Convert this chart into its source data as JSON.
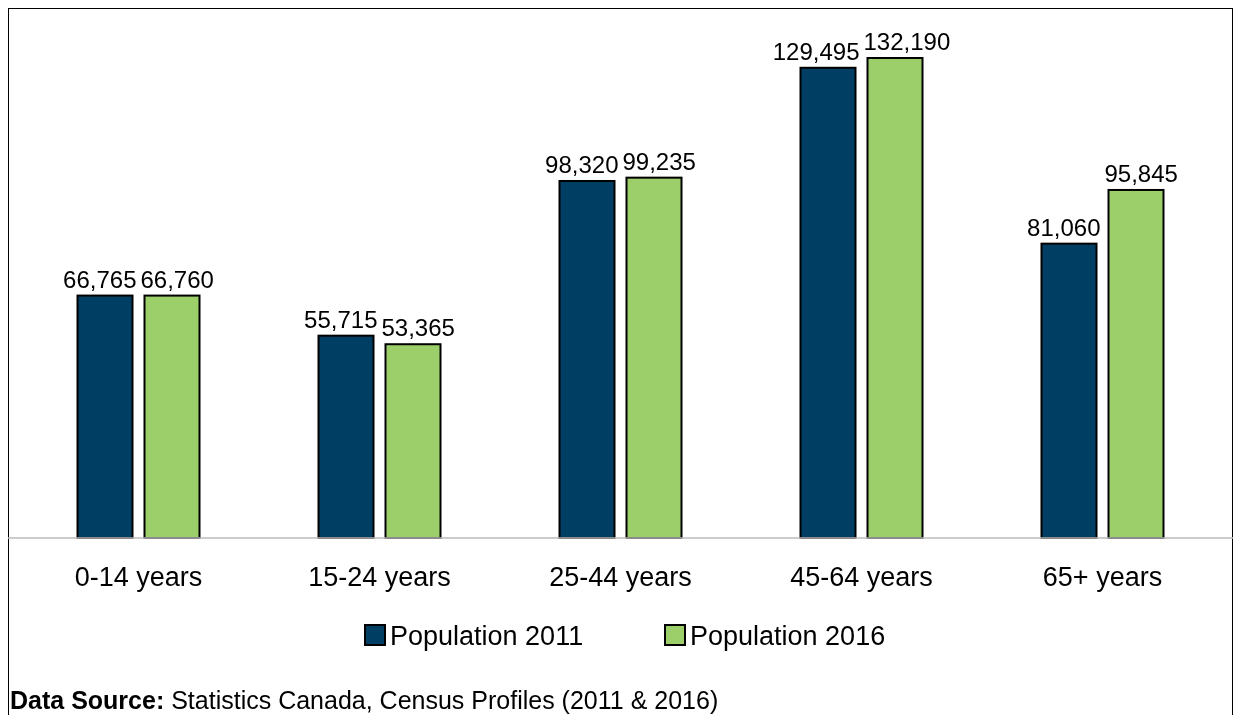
{
  "chart_data": {
    "type": "bar",
    "categories": [
      "0-14 years",
      "15-24 years",
      "25-44 years",
      "45-64 years",
      "65+ years"
    ],
    "series": [
      {
        "name": "Population 2011",
        "color": "#003f63",
        "values": [
          66765,
          55715,
          98320,
          129495,
          81060
        ],
        "value_labels": [
          "66,765",
          "55,715",
          "98,320",
          "129,495",
          "81,060"
        ]
      },
      {
        "name": "Population 2016",
        "color": "#9ccf6a",
        "values": [
          66760,
          53365,
          99235,
          132190,
          95845
        ],
        "value_labels": [
          "66,760",
          "53,365",
          "99,235",
          "132,190",
          "95,845"
        ]
      }
    ],
    "legend": "bottom",
    "grid": false,
    "annotations": [
      "Data Source: Statistics Canada, Census Profiles (2011 & 2016)"
    ]
  }
}
